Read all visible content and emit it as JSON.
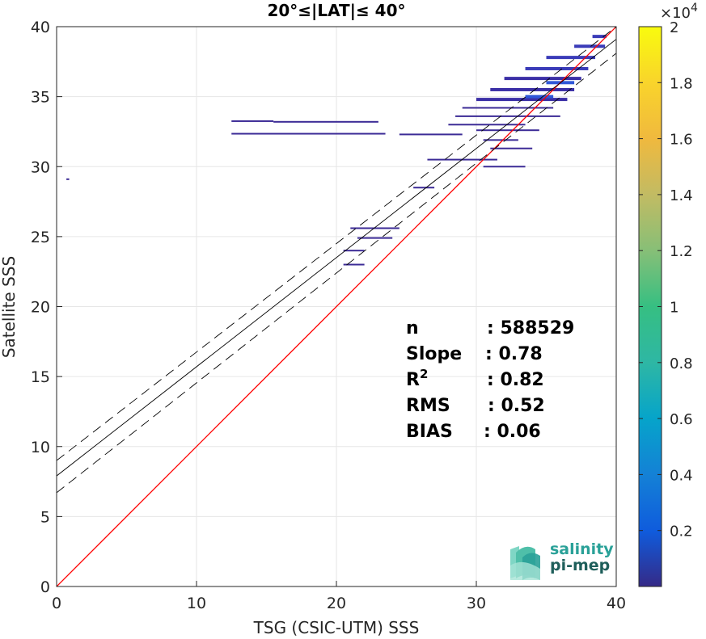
{
  "chart_data": {
    "type": "heatmap",
    "title": "20°≤|LAT|≤ 40°",
    "xlabel": "TSG (CSIC-UTM) SSS",
    "ylabel": "Satellite SSS",
    "xlim": [
      0,
      40
    ],
    "ylim": [
      0,
      40
    ],
    "xticks": [
      0,
      10,
      20,
      30,
      40
    ],
    "yticks": [
      0,
      5,
      10,
      15,
      20,
      25,
      30,
      35,
      40
    ],
    "grid": true,
    "colorbar": {
      "min": 0,
      "max": 20000,
      "ticks": [
        0.2,
        0.4,
        0.6,
        0.8,
        1,
        1.2,
        1.4,
        1.6,
        1.8,
        2
      ],
      "tick_labels": [
        "0.2",
        "0.4",
        "0.6",
        "0.8",
        "1",
        "1.2",
        "1.4",
        "1.6",
        "1.8",
        "2"
      ],
      "exponent_label": "×10",
      "exponent_power": "4",
      "colormap": "parula"
    },
    "lines": [
      {
        "kind": "identity",
        "color": "#ff0000",
        "x": [
          0,
          40
        ],
        "y": [
          0,
          40
        ]
      },
      {
        "kind": "regression",
        "color": "#000000",
        "dash": false,
        "x": [
          0,
          40
        ],
        "y": [
          7.9,
          39.1
        ]
      },
      {
        "kind": "regression-plus-rms",
        "color": "#000000",
        "dash": true,
        "x": [
          0,
          40
        ],
        "y": [
          9.0,
          40.0
        ]
      },
      {
        "kind": "regression-minus-rms",
        "color": "#000000",
        "dash": true,
        "x": [
          0,
          40
        ],
        "y": [
          6.7,
          38.1
        ]
      }
    ],
    "density_segments": [
      {
        "x0": 12.5,
        "x1": 15.5,
        "y": 33.25,
        "density": 0.02
      },
      {
        "x0": 12.5,
        "x1": 23.5,
        "y": 32.35,
        "density": 0.01
      },
      {
        "x0": 15.5,
        "x1": 23.0,
        "y": 33.2,
        "density": 0.01
      },
      {
        "x0": 24.5,
        "x1": 29.0,
        "y": 32.3,
        "density": 0.02
      },
      {
        "x0": 28.0,
        "x1": 33.5,
        "y": 33.0,
        "density": 0.03
      },
      {
        "x0": 28.5,
        "x1": 36.0,
        "y": 33.6,
        "density": 0.04
      },
      {
        "x0": 29.0,
        "x1": 35.5,
        "y": 34.2,
        "density": 0.04
      },
      {
        "x0": 30.0,
        "x1": 36.5,
        "y": 34.8,
        "density": 0.05
      },
      {
        "x0": 31.0,
        "x1": 37.0,
        "y": 35.5,
        "density": 0.06
      },
      {
        "x0": 32.0,
        "x1": 37.5,
        "y": 36.3,
        "density": 0.08
      },
      {
        "x0": 33.5,
        "x1": 38.0,
        "y": 37.0,
        "density": 0.1
      },
      {
        "x0": 35.0,
        "x1": 38.5,
        "y": 37.8,
        "density": 0.12
      },
      {
        "x0": 37.0,
        "x1": 39.2,
        "y": 38.6,
        "density": 0.14
      },
      {
        "x0": 38.3,
        "x1": 39.3,
        "y": 39.3,
        "density": 0.1
      },
      {
        "x0": 30.0,
        "x1": 34.5,
        "y": 32.6,
        "density": 0.03
      },
      {
        "x0": 30.5,
        "x1": 33.0,
        "y": 31.9,
        "density": 0.02
      },
      {
        "x0": 31.0,
        "x1": 34.0,
        "y": 31.3,
        "density": 0.02
      },
      {
        "x0": 26.5,
        "x1": 31.5,
        "y": 30.5,
        "density": 0.02
      },
      {
        "x0": 30.5,
        "x1": 33.5,
        "y": 30.0,
        "density": 0.01
      },
      {
        "x0": 25.5,
        "x1": 27.0,
        "y": 28.5,
        "density": 0.01
      },
      {
        "x0": 21.0,
        "x1": 24.5,
        "y": 25.6,
        "density": 0.01
      },
      {
        "x0": 21.5,
        "x1": 24.0,
        "y": 24.9,
        "density": 0.01
      },
      {
        "x0": 20.5,
        "x1": 22.0,
        "y": 24.0,
        "density": 0.01
      },
      {
        "x0": 20.5,
        "x1": 22.0,
        "y": 23.0,
        "density": 0.01
      },
      {
        "x0": 0.7,
        "x1": 0.9,
        "y": 29.1,
        "density": 0.01
      },
      {
        "x0": 33.5,
        "x1": 35.5,
        "y": 35.0,
        "density": 0.25
      },
      {
        "x0": 35.0,
        "x1": 37.0,
        "y": 36.0,
        "density": 0.2
      }
    ],
    "stats": [
      {
        "label": "n",
        "value": ": 588529"
      },
      {
        "label": "Slope",
        "value": ": 0.78"
      },
      {
        "label": "R",
        "label_sup": "2",
        "value": ": 0.82"
      },
      {
        "label": "RMS",
        "value": ": 0.52"
      },
      {
        "label": "BIAS",
        "value": ": 0.06"
      }
    ]
  },
  "logo": {
    "line1": "salinity",
    "line2": "pi-mep",
    "color1": "#2aa198",
    "color2": "#1f5f5b"
  },
  "colors": {
    "identity_line": "#ff0000",
    "grid": "#e6e6e6",
    "axes": "#262626"
  }
}
